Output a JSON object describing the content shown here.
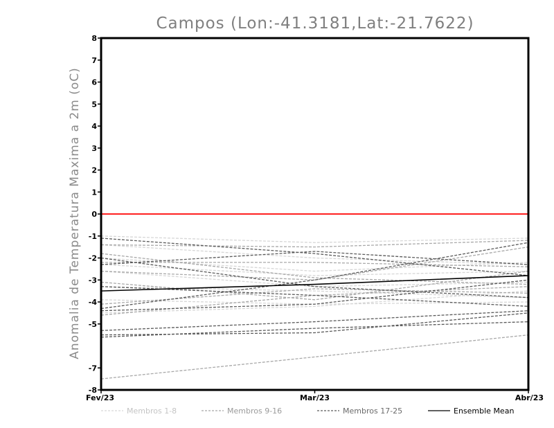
{
  "chart_data": {
    "type": "line",
    "title": "Campos (Lon:-41.3181,Lat:-21.7622)",
    "ylabel": "Anomalia de Temperatura Maxima a 2m (oC)",
    "xlabel": "",
    "categories": [
      "Fev/23",
      "Mar/23",
      "Abr/23"
    ],
    "ylim": [
      -8,
      8
    ],
    "yticks": [
      "8",
      "7",
      "6",
      "5",
      "4",
      "3",
      "2",
      "1",
      "0",
      "-1",
      "-2",
      "-3",
      "-4",
      "-5",
      "-7",
      "-8"
    ],
    "yticks_values": [
      8,
      7,
      6,
      5,
      4,
      3,
      2,
      1,
      0,
      -1,
      -2,
      -3,
      -4,
      -5,
      -7,
      -8
    ],
    "reference_line": {
      "value": 0,
      "color": "#ff2020"
    },
    "groups": [
      {
        "name": "Membros 1-8",
        "color": "#d6d6d6",
        "dashed": true,
        "series": [
          {
            "values": [
              -1.0,
              -1.3,
              -1.1
            ]
          },
          {
            "values": [
              -1.4,
              -2.0,
              -2.3
            ]
          },
          {
            "values": [
              -2.3,
              -2.8,
              -2.6
            ]
          },
          {
            "values": [
              -2.6,
              -3.3,
              -3.1
            ]
          },
          {
            "values": [
              -3.3,
              -3.5,
              -3.8
            ]
          },
          {
            "values": [
              -3.9,
              -4.1,
              -4.0
            ]
          },
          {
            "values": [
              -4.5,
              -4.2,
              -3.5
            ]
          },
          {
            "values": [
              -2.0,
              -2.6,
              -2.2
            ]
          }
        ]
      },
      {
        "name": "Membros 9-16",
        "color": "#a8a8a8",
        "dashed": true,
        "series": [
          {
            "values": [
              -7.5,
              -6.5,
              -5.5
            ]
          },
          {
            "values": [
              -1.4,
              -1.5,
              -1.2
            ]
          },
          {
            "values": [
              -2.2,
              -2.2,
              -2.4
            ]
          },
          {
            "values": [
              -4.6,
              -3.7,
              -3.3
            ]
          },
          {
            "values": [
              -3.1,
              -3.9,
              -2.6
            ]
          },
          {
            "values": [
              -1.8,
              -2.9,
              -3.2
            ]
          },
          {
            "values": [
              -2.6,
              -3.0,
              -1.5
            ]
          },
          {
            "values": [
              -4.1,
              -3.4,
              -3.6
            ]
          }
        ]
      },
      {
        "name": "Membros 17-25",
        "color": "#5a5a5a",
        "dashed": true,
        "series": [
          {
            "values": [
              -5.5,
              -5.4,
              -4.5
            ]
          },
          {
            "values": [
              -5.3,
              -4.9,
              -4.4
            ]
          },
          {
            "values": [
              -5.6,
              -5.2,
              -4.9
            ]
          },
          {
            "values": [
              -4.3,
              -3.0,
              -1.3
            ]
          },
          {
            "values": [
              -4.4,
              -4.1,
              -3.0
            ]
          },
          {
            "values": [
              -3.3,
              -3.7,
              -4.2
            ]
          },
          {
            "values": [
              -2.0,
              -3.3,
              -3.8
            ]
          },
          {
            "values": [
              -1.1,
              -1.8,
              -2.8
            ]
          },
          {
            "values": [
              -2.3,
              -1.7,
              -2.3
            ]
          }
        ]
      }
    ],
    "ensemble_mean": {
      "name": "Ensemble Mean",
      "color": "#000000",
      "values": [
        -3.5,
        -3.2,
        -2.8
      ]
    },
    "grid": false,
    "legend_position": "bottom"
  }
}
